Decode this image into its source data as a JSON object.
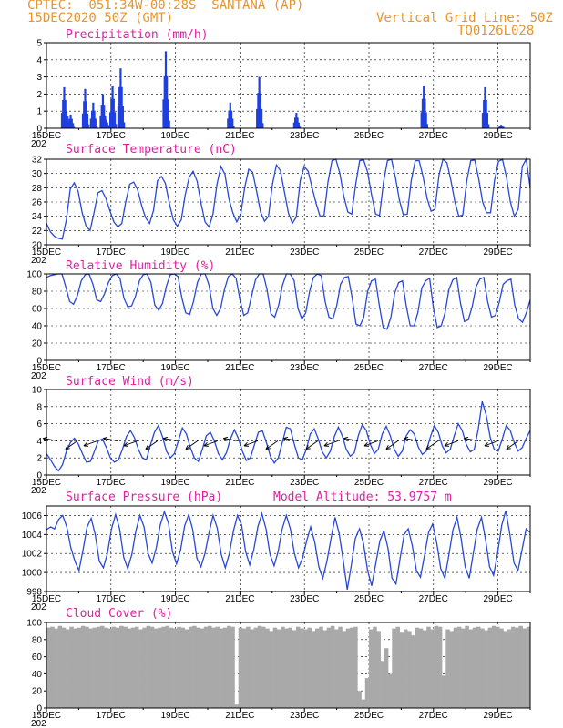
{
  "header": {
    "line1": "CPTEC:  051:34W-00:28S  SANTANA (AP)",
    "line2": "15DEC2020 50Z (GMT)",
    "right1": "Vertical Grid Line: 50Z",
    "right2": "TQ0126L028"
  },
  "colors": {
    "title": "#e020a0",
    "header": "#e8952e",
    "line": "#2848d8",
    "bar": "#1f3fe0",
    "cloud": "#a9a9a9",
    "grid": "#000000"
  },
  "x_ticks": [
    "15DEC",
    "17DEC",
    "19DEC",
    "21DEC",
    "23DEC",
    "25DEC",
    "27DEC",
    "29DEC"
  ],
  "clipped_label": "202",
  "chart_data": [
    {
      "type": "bar",
      "title": "Precipitation (mm/h)",
      "ylim": [
        0,
        5
      ],
      "yticks": [
        "0",
        "1",
        "2",
        "3",
        "4",
        "5"
      ],
      "events": [
        [
          0.55,
          2.4
        ],
        [
          0.62,
          1.0
        ],
        [
          0.75,
          0.8
        ],
        [
          1.2,
          2.3
        ],
        [
          1.45,
          1.5
        ],
        [
          1.75,
          2.0
        ],
        [
          1.85,
          0.5
        ],
        [
          2.05,
          2.5
        ],
        [
          2.3,
          3.5
        ],
        [
          3.7,
          4.5
        ],
        [
          5.7,
          1.5
        ],
        [
          6.6,
          3.0
        ],
        [
          7.75,
          0.9
        ],
        [
          11.7,
          2.5
        ],
        [
          13.6,
          2.4
        ],
        [
          14.1,
          0.2
        ]
      ],
      "xlim_days": [
        0,
        15
      ]
    },
    {
      "type": "line",
      "title": "Surface Temperature (nC)",
      "ylim": [
        20,
        32
      ],
      "yticks": [
        "20",
        "22",
        "24",
        "26",
        "28",
        "30",
        "32"
      ],
      "amplitude_note": "",
      "values": [
        23.0,
        21.8,
        21.2,
        20.9,
        20.8,
        23.5,
        27.8,
        28.7,
        27.5,
        24.5,
        22.6,
        22.0,
        24.5,
        27.3,
        27.6,
        26.5,
        24.8,
        23.2,
        22.5,
        23.0,
        26.0,
        28.5,
        28.8,
        27.7,
        25.5,
        23.8,
        23.0,
        24.8,
        29.0,
        29.6,
        28.6,
        25.8,
        23.5,
        22.6,
        23.5,
        27.0,
        29.5,
        30.3,
        28.9,
        25.8,
        23.2,
        22.5,
        24.3,
        28.5,
        31.0,
        29.9,
        26.5,
        24.5,
        23.2,
        24.3,
        28.0,
        30.6,
        30.2,
        27.5,
        24.6,
        23.3,
        24.0,
        28.5,
        31.2,
        30.4,
        27.5,
        24.5,
        23.0,
        23.9,
        29.0,
        31.0,
        30.3,
        28.0,
        25.8,
        24.0,
        24.1,
        28.8,
        31.8,
        32.0,
        30.0,
        26.8,
        24.6,
        24.3,
        28.5,
        31.8,
        31.9,
        30.2,
        27.0,
        24.3,
        24.1,
        28.8,
        31.8,
        32.0,
        29.5,
        26.3,
        24.2,
        24.3,
        29.0,
        31.8,
        31.8,
        29.5,
        26.5,
        24.7,
        25.0,
        29.8,
        32.0,
        31.5,
        29.0,
        26.0,
        24.0,
        24.2,
        29.0,
        31.8,
        31.9,
        29.3,
        26.0,
        24.5,
        24.5,
        29.0,
        31.7,
        32.0,
        29.5,
        26.0,
        24.0,
        25.0,
        31.0,
        32.0,
        28.0
      ]
    },
    {
      "type": "line",
      "title": "Relative Humidity (%)",
      "ylim": [
        0,
        100
      ],
      "yticks": [
        "0",
        "20",
        "40",
        "60",
        "80",
        "100"
      ],
      "values": [
        96,
        98,
        99,
        100,
        100,
        85,
        68,
        65,
        75,
        92,
        99,
        100,
        88,
        70,
        68,
        77,
        90,
        98,
        100,
        95,
        72,
        62,
        63,
        74,
        92,
        99,
        100,
        90,
        64,
        58,
        66,
        86,
        99,
        100,
        97,
        72,
        55,
        53,
        68,
        90,
        100,
        100,
        87,
        60,
        52,
        60,
        82,
        97,
        100,
        95,
        70,
        52,
        55,
        74,
        93,
        100,
        100,
        82,
        54,
        50,
        64,
        87,
        100,
        100,
        92,
        60,
        48,
        55,
        80,
        96,
        100,
        98,
        68,
        50,
        48,
        63,
        88,
        96,
        97,
        72,
        42,
        40,
        50,
        80,
        92,
        94,
        64,
        38,
        36,
        50,
        78,
        90,
        92,
        62,
        40,
        40,
        56,
        84,
        92,
        95,
        60,
        38,
        40,
        55,
        82,
        93,
        96,
        66,
        45,
        47,
        62,
        85,
        94,
        96,
        68,
        50,
        52,
        67,
        88,
        92,
        94,
        64,
        48,
        44,
        55,
        70
      ]
    },
    {
      "type": "line",
      "title": "Surface Wind (m/s)",
      "ylim": [
        0,
        10
      ],
      "yticks": [
        "0",
        "2",
        "4",
        "6",
        "8",
        "10"
      ],
      "values": [
        2.5,
        1.8,
        1.0,
        0.5,
        1.2,
        2.8,
        3.8,
        4.3,
        3.6,
        2.5,
        1.5,
        1.6,
        2.8,
        4.0,
        4.2,
        3.2,
        2.0,
        1.5,
        1.8,
        3.0,
        4.5,
        5.2,
        4.4,
        3.0,
        2.0,
        1.8,
        3.5,
        5.0,
        5.8,
        4.5,
        2.8,
        2.0,
        2.5,
        4.0,
        5.5,
        4.8,
        3.2,
        2.0,
        1.6,
        3.0,
        4.6,
        5.0,
        4.0,
        2.5,
        1.8,
        2.6,
        4.2,
        5.3,
        4.3,
        2.8,
        1.7,
        2.0,
        3.5,
        5.0,
        5.2,
        3.8,
        2.2,
        1.4,
        2.0,
        3.8,
        5.6,
        5.4,
        3.6,
        2.0,
        1.8,
        3.0,
        4.8,
        5.4,
        4.2,
        2.7,
        2.0,
        2.8,
        4.5,
        5.6,
        4.6,
        3.0,
        2.2,
        2.6,
        4.6,
        5.9,
        5.2,
        3.6,
        2.5,
        3.0,
        4.8,
        5.7,
        4.6,
        3.0,
        2.2,
        2.8,
        4.6,
        5.3,
        4.8,
        3.3,
        2.4,
        2.8,
        4.4,
        5.8,
        5.0,
        3.4,
        2.6,
        3.0,
        4.6,
        6.0,
        5.2,
        3.6,
        2.7,
        3.0,
        5.4,
        8.6,
        7.0,
        4.4,
        3.0,
        2.8,
        4.2,
        5.8,
        5.2,
        3.8,
        2.8,
        3.2,
        4.3,
        5.2
      ]
    },
    {
      "type": "line",
      "title": "Surface Pressure (hPa)",
      "subtitle": "Model Altitude: 53.9757 m",
      "ylim": [
        998,
        1007
      ],
      "yticks": [
        "998",
        "1000",
        "1002",
        "1004",
        "1006"
      ],
      "values": [
        1004.5,
        1004.8,
        1004.6,
        1005.6,
        1006.0,
        1004.8,
        1002.6,
        1001.2,
        1000.2,
        1002.4,
        1004.8,
        1005.7,
        1004.0,
        1001.2,
        1000.5,
        1002.0,
        1004.6,
        1006.1,
        1004.6,
        1001.6,
        1000.4,
        1001.9,
        1004.4,
        1006.0,
        1004.8,
        1002.0,
        1001.0,
        1002.6,
        1005.0,
        1006.4,
        1005.2,
        1002.2,
        1000.9,
        1002.4,
        1004.9,
        1006.1,
        1004.5,
        1001.5,
        1000.6,
        1002.0,
        1004.2,
        1006.0,
        1004.7,
        1001.9,
        1000.5,
        1002.0,
        1004.4,
        1006.0,
        1005.0,
        1002.2,
        1000.8,
        1002.4,
        1004.8,
        1006.2,
        1004.6,
        1001.9,
        1000.7,
        1002.2,
        1004.6,
        1006.0,
        1004.6,
        1002.0,
        1000.5,
        1001.5,
        1003.3,
        1004.8,
        1003.2,
        1000.6,
        999.4,
        1001.2,
        1003.6,
        1005.8,
        1004.1,
        1001.3,
        998.2,
        1000.8,
        1003.6,
        1004.6,
        1003.0,
        1000.2,
        998.6,
        1000.9,
        1003.3,
        1004.4,
        1002.6,
        999.4,
        998.8,
        1001.5,
        1004.0,
        1004.6,
        1002.8,
        1000.2,
        999.5,
        1001.8,
        1004.2,
        1005.1,
        1003.1,
        1000.4,
        999.4,
        1001.9,
        1004.5,
        1005.8,
        1003.6,
        1000.6,
        999.4,
        1002.0,
        1004.6,
        1005.8,
        1003.5,
        1000.6,
        999.7,
        1002.1,
        1005.0,
        1006.5,
        1004.0,
        1001.0,
        1000.2,
        1002.4,
        1004.6,
        1004.2
      ]
    },
    {
      "type": "bar",
      "title": "Cloud Cover (%)",
      "ylim": [
        0,
        100
      ],
      "yticks": [
        "0",
        "20",
        "40",
        "60",
        "80",
        "100"
      ],
      "values": [
        94,
        95,
        93,
        96,
        94,
        92,
        95,
        93,
        94,
        96,
        95,
        93,
        94,
        95,
        96,
        94,
        93,
        95,
        94,
        96,
        95,
        93,
        94,
        95,
        92,
        94,
        96,
        95,
        93,
        94,
        95,
        96,
        94,
        93,
        95,
        94,
        92,
        95,
        96,
        94,
        93,
        95,
        96,
        94,
        95,
        93,
        94,
        96,
        95,
        4,
        94,
        93,
        95,
        92,
        94,
        96,
        95,
        93,
        90,
        94,
        92,
        95,
        93,
        94,
        91,
        95,
        93,
        92,
        94,
        90,
        93,
        95,
        91,
        94,
        96,
        92,
        95,
        90,
        93,
        94,
        95,
        20,
        10,
        35,
        92,
        95,
        90,
        55,
        70,
        40,
        93,
        95,
        88,
        92,
        90,
        85,
        94,
        93,
        91,
        95,
        92,
        96,
        95,
        38,
        92,
        90,
        94,
        95,
        93,
        96,
        92,
        94,
        95,
        93,
        91,
        94,
        96,
        95,
        93,
        90,
        92,
        95,
        94,
        96,
        93,
        95
      ]
    }
  ]
}
